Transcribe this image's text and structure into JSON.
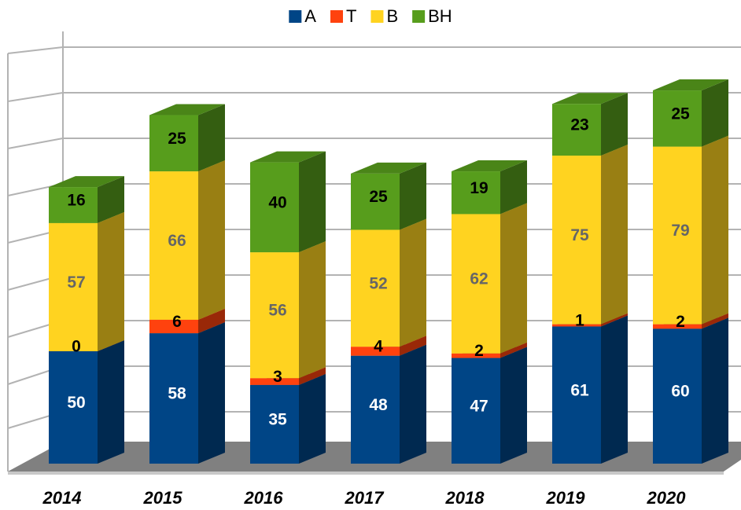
{
  "chart_data": {
    "type": "bar3d-stacked",
    "categories": [
      "2014",
      "2015",
      "2016",
      "2017",
      "2018",
      "2019",
      "2020"
    ],
    "series": [
      {
        "name": "A",
        "color": "#004586",
        "values": [
          50,
          58,
          35,
          48,
          47,
          61,
          60
        ]
      },
      {
        "name": "T",
        "color": "#ff420e",
        "values": [
          0,
          6,
          3,
          4,
          2,
          1,
          2
        ]
      },
      {
        "name": "B",
        "color": "#ffd320",
        "values": [
          57,
          66,
          56,
          52,
          62,
          75,
          79
        ]
      },
      {
        "name": "BH",
        "color": "#579d1c",
        "values": [
          16,
          25,
          40,
          25,
          19,
          23,
          25
        ]
      }
    ],
    "ylim": [
      0,
      180
    ],
    "legend": "top"
  }
}
